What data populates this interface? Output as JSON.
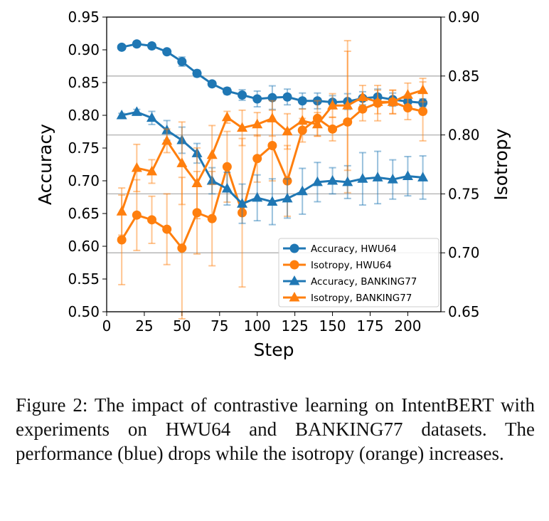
{
  "chart_data": {
    "type": "line",
    "xlabel": "Step",
    "ylabel": "Accuracy",
    "y2label": "Isotropy",
    "xlim": [
      0,
      222
    ],
    "ylim": [
      0.5,
      0.95
    ],
    "y2lim": [
      0.65,
      0.9
    ],
    "xticks": [
      "0",
      "25",
      "50",
      "75",
      "100",
      "125",
      "150",
      "175",
      "200"
    ],
    "yticks": [
      "0.50",
      "0.55",
      "0.60",
      "0.65",
      "0.70",
      "0.75",
      "0.80",
      "0.85",
      "0.90",
      "0.95"
    ],
    "y2ticks": [
      "0.65",
      "0.70",
      "0.75",
      "0.80",
      "0.85",
      "0.90"
    ],
    "grid": "horizontal on right axis",
    "legend_position": "lower-right",
    "x": [
      10,
      20,
      30,
      40,
      50,
      60,
      70,
      80,
      90,
      100,
      110,
      120,
      130,
      140,
      150,
      160,
      170,
      180,
      190,
      200,
      210
    ],
    "series": [
      {
        "name": "Accuracy, HWU64",
        "axis": "left",
        "marker": "circle",
        "color": "#1f77b4",
        "values": [
          0.904,
          0.909,
          0.906,
          0.897,
          0.882,
          0.864,
          0.848,
          0.837,
          0.831,
          0.825,
          0.827,
          0.828,
          0.822,
          0.822,
          0.82,
          0.821,
          0.826,
          0.828,
          0.824,
          0.821,
          0.819
        ],
        "errors": [
          0.003,
          0.004,
          0.004,
          0.003,
          0.007,
          0.005,
          0.004,
          0.005,
          0.008,
          0.012,
          0.018,
          0.012,
          0.012,
          0.012,
          0.01,
          0.012,
          0.01,
          0.012,
          0.01,
          0.01,
          0.006
        ]
      },
      {
        "name": "Isotropy,  HWU64",
        "axis": "right",
        "marker": "circle",
        "color": "#ff7f0e",
        "values": [
          0.711,
          0.732,
          0.728,
          0.72,
          0.704,
          0.734,
          0.729,
          0.773,
          0.734,
          0.78,
          0.791,
          0.761,
          0.804,
          0.814,
          0.805,
          0.811,
          0.822,
          0.827,
          0.828,
          0.823,
          0.82
        ],
        "errors": [
          0.038,
          0.03,
          0.02,
          0.03,
          0.06,
          0.035,
          0.04,
          0.03,
          0.063,
          0.02,
          0.03,
          0.03,
          0.01,
          0.015,
          0.01,
          0.06,
          0.01,
          0.015,
          0.01,
          0.01,
          0.025
        ]
      },
      {
        "name": "Accuracy, BANKING77",
        "axis": "left",
        "marker": "triangle",
        "color": "#1f77b4",
        "values": [
          0.8,
          0.805,
          0.796,
          0.777,
          0.762,
          0.742,
          0.7,
          0.688,
          0.665,
          0.674,
          0.668,
          0.673,
          0.684,
          0.698,
          0.7,
          0.698,
          0.703,
          0.705,
          0.702,
          0.707,
          0.705
        ],
        "errors": [
          0.003,
          0.004,
          0.01,
          0.015,
          0.02,
          0.015,
          0.02,
          0.025,
          0.03,
          0.035,
          0.035,
          0.03,
          0.035,
          0.03,
          0.02,
          0.025,
          0.04,
          0.04,
          0.03,
          0.03,
          0.033
        ]
      },
      {
        "name": "Isotropy,  BANKING77",
        "axis": "right",
        "marker": "triangle",
        "color": "#ff7f0e",
        "values": [
          0.735,
          0.772,
          0.769,
          0.795,
          0.776,
          0.759,
          0.783,
          0.815,
          0.806,
          0.809,
          0.814,
          0.803,
          0.812,
          0.809,
          0.825,
          0.825,
          0.832,
          0.828,
          0.828,
          0.834,
          0.838
        ],
        "errors": [
          0.02,
          0.02,
          0.01,
          0.01,
          0.035,
          0.03,
          0.025,
          0.005,
          0.015,
          0.01,
          0.015,
          0.015,
          0.01,
          0.01,
          0.01,
          0.055,
          0.01,
          0.01,
          0.01,
          0.01,
          0.01
        ]
      }
    ]
  },
  "caption": "Figure 2:  The impact of contrastive learning on IntentBERT with experiments on HWU64 and BANKING77 datasets.  The performance (blue) drops while the isotropy (orange) increases."
}
